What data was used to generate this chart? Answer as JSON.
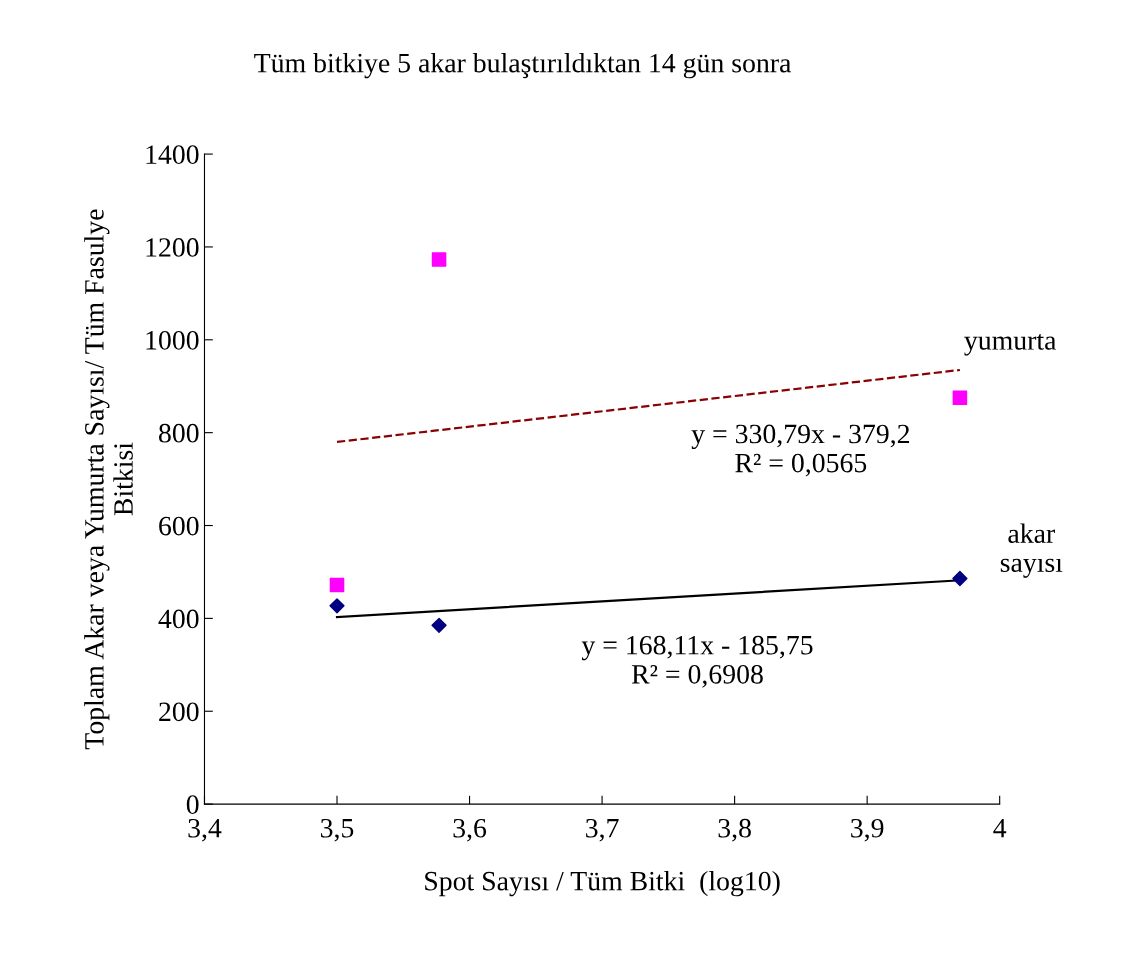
{
  "chart_data": {
    "type": "scatter",
    "title": "Tüm bitkiye 5 akar bulaştırıldıktan 14 gün sonra",
    "xlabel": "Spot Sayısı / Tüm Bitki  (log10)",
    "ylabel": "Toplam Akar veya Yumurta Sayısı/ Tüm Fasulye\nBitkisi",
    "series": [
      {
        "color": "#ff00ff",
        "marker": "square",
        "x": [
          3.5,
          3.577,
          3.97
        ],
        "values": [
          472,
          1173,
          875
        ]
      },
      {
        "color": "#000080",
        "marker": "diamond",
        "x": [
          3.5,
          3.577,
          3.97
        ],
        "values": [
          427,
          385,
          486
        ]
      },
      {
        "type": "line",
        "color": "#8b0000",
        "marker": "none",
        "line_style": "dashed",
        "x": [
          3.5,
          3.97
        ],
        "values": [
          780,
          935
        ]
      },
      {
        "type": "line",
        "color": "#000000",
        "marker": "none",
        "line_style": "solid",
        "x": [
          3.5,
          3.97
        ],
        "values": [
          403,
          482
        ]
      }
    ],
    "annotations": [
      "yumurta",
      "y = 330,79x - 379,2\nR² = 0,0565",
      "akar\nsayısı",
      "y = 168,11x - 185,75\nR² = 0,6908"
    ],
    "xlim": [
      3.4,
      4
    ],
    "xticks": [
      {
        "value": 3.4,
        "label": "3,4"
      },
      {
        "value": 3.5,
        "label": "3,5"
      },
      {
        "value": 3.6,
        "label": "3,6"
      },
      {
        "value": 3.7,
        "label": "3,7"
      },
      {
        "value": 3.8,
        "label": "3,8"
      },
      {
        "value": 3.9,
        "label": "3,9"
      },
      4
    ],
    "ylim": [
      0,
      1400
    ],
    "yticks": [
      0,
      200,
      400,
      600,
      800,
      1000,
      1200,
      1400
    ],
    "grid": false,
    "legend": false
  }
}
